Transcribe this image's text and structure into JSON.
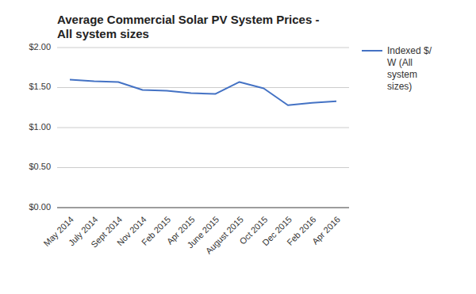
{
  "chart_data": {
    "type": "line",
    "title": "Average Commercial Solar PV System Prices -\nAll system sizes",
    "categories": [
      "May 2014",
      "July 2014",
      "Sept 2014",
      "Nov 2014",
      "Feb 2015",
      "Apr 2015",
      "June 2015",
      "August 2015",
      "Oct 2015",
      "Dec 2015",
      "Feb 2016",
      "Apr 2016"
    ],
    "series": [
      {
        "name": "Indexed $/\nW (All\nsystem\nsizes)",
        "color": "#4472C4",
        "values": [
          1.6,
          1.58,
          1.57,
          1.47,
          1.46,
          1.43,
          1.42,
          1.57,
          1.49,
          1.28,
          1.31,
          1.33
        ]
      }
    ],
    "ylim": [
      0.0,
      2.0
    ],
    "yticks": [
      {
        "value": 0.0,
        "label": "$0.00"
      },
      {
        "value": 0.5,
        "label": "$0.50"
      },
      {
        "value": 1.0,
        "label": "$1.00"
      },
      {
        "value": 1.5,
        "label": "$1.50"
      },
      {
        "value": 2.0,
        "label": "$2.00"
      }
    ],
    "grid": true,
    "legend": "right"
  }
}
